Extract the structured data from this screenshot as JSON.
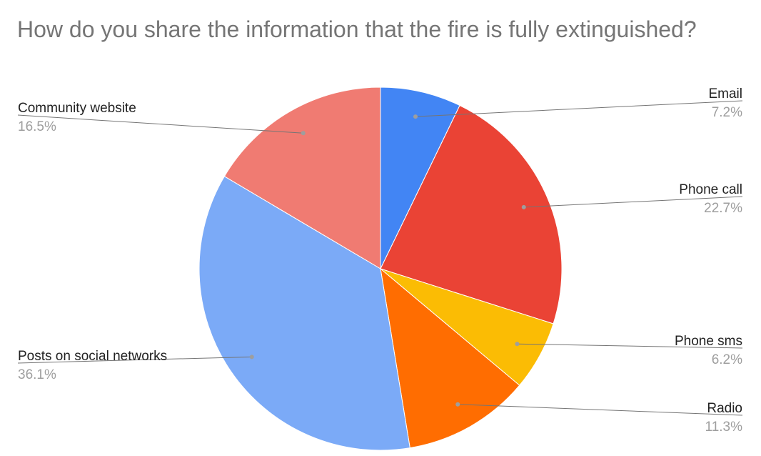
{
  "chart_data": {
    "type": "pie",
    "title": "How do you share the information that the fire is fully extinguished?",
    "legend": "labels outside slices with leader lines",
    "slices": [
      {
        "label": "Email",
        "value": 7.2,
        "display": "7.2%",
        "color": "#4285f4"
      },
      {
        "label": "Phone call",
        "value": 22.7,
        "display": "22.7%",
        "color": "#ea4335"
      },
      {
        "label": "Phone sms",
        "value": 6.2,
        "display": "6.2%",
        "color": "#fbbc04"
      },
      {
        "label": "Radio",
        "value": 11.3,
        "display": "11.3%",
        "color": "#ff6d01"
      },
      {
        "label": "Posts on social networks",
        "value": 36.1,
        "display": "36.1%",
        "color": "#7baaf7"
      },
      {
        "label": "Community website",
        "value": 16.5,
        "display": "16.5%",
        "color": "#f07b72"
      }
    ]
  }
}
